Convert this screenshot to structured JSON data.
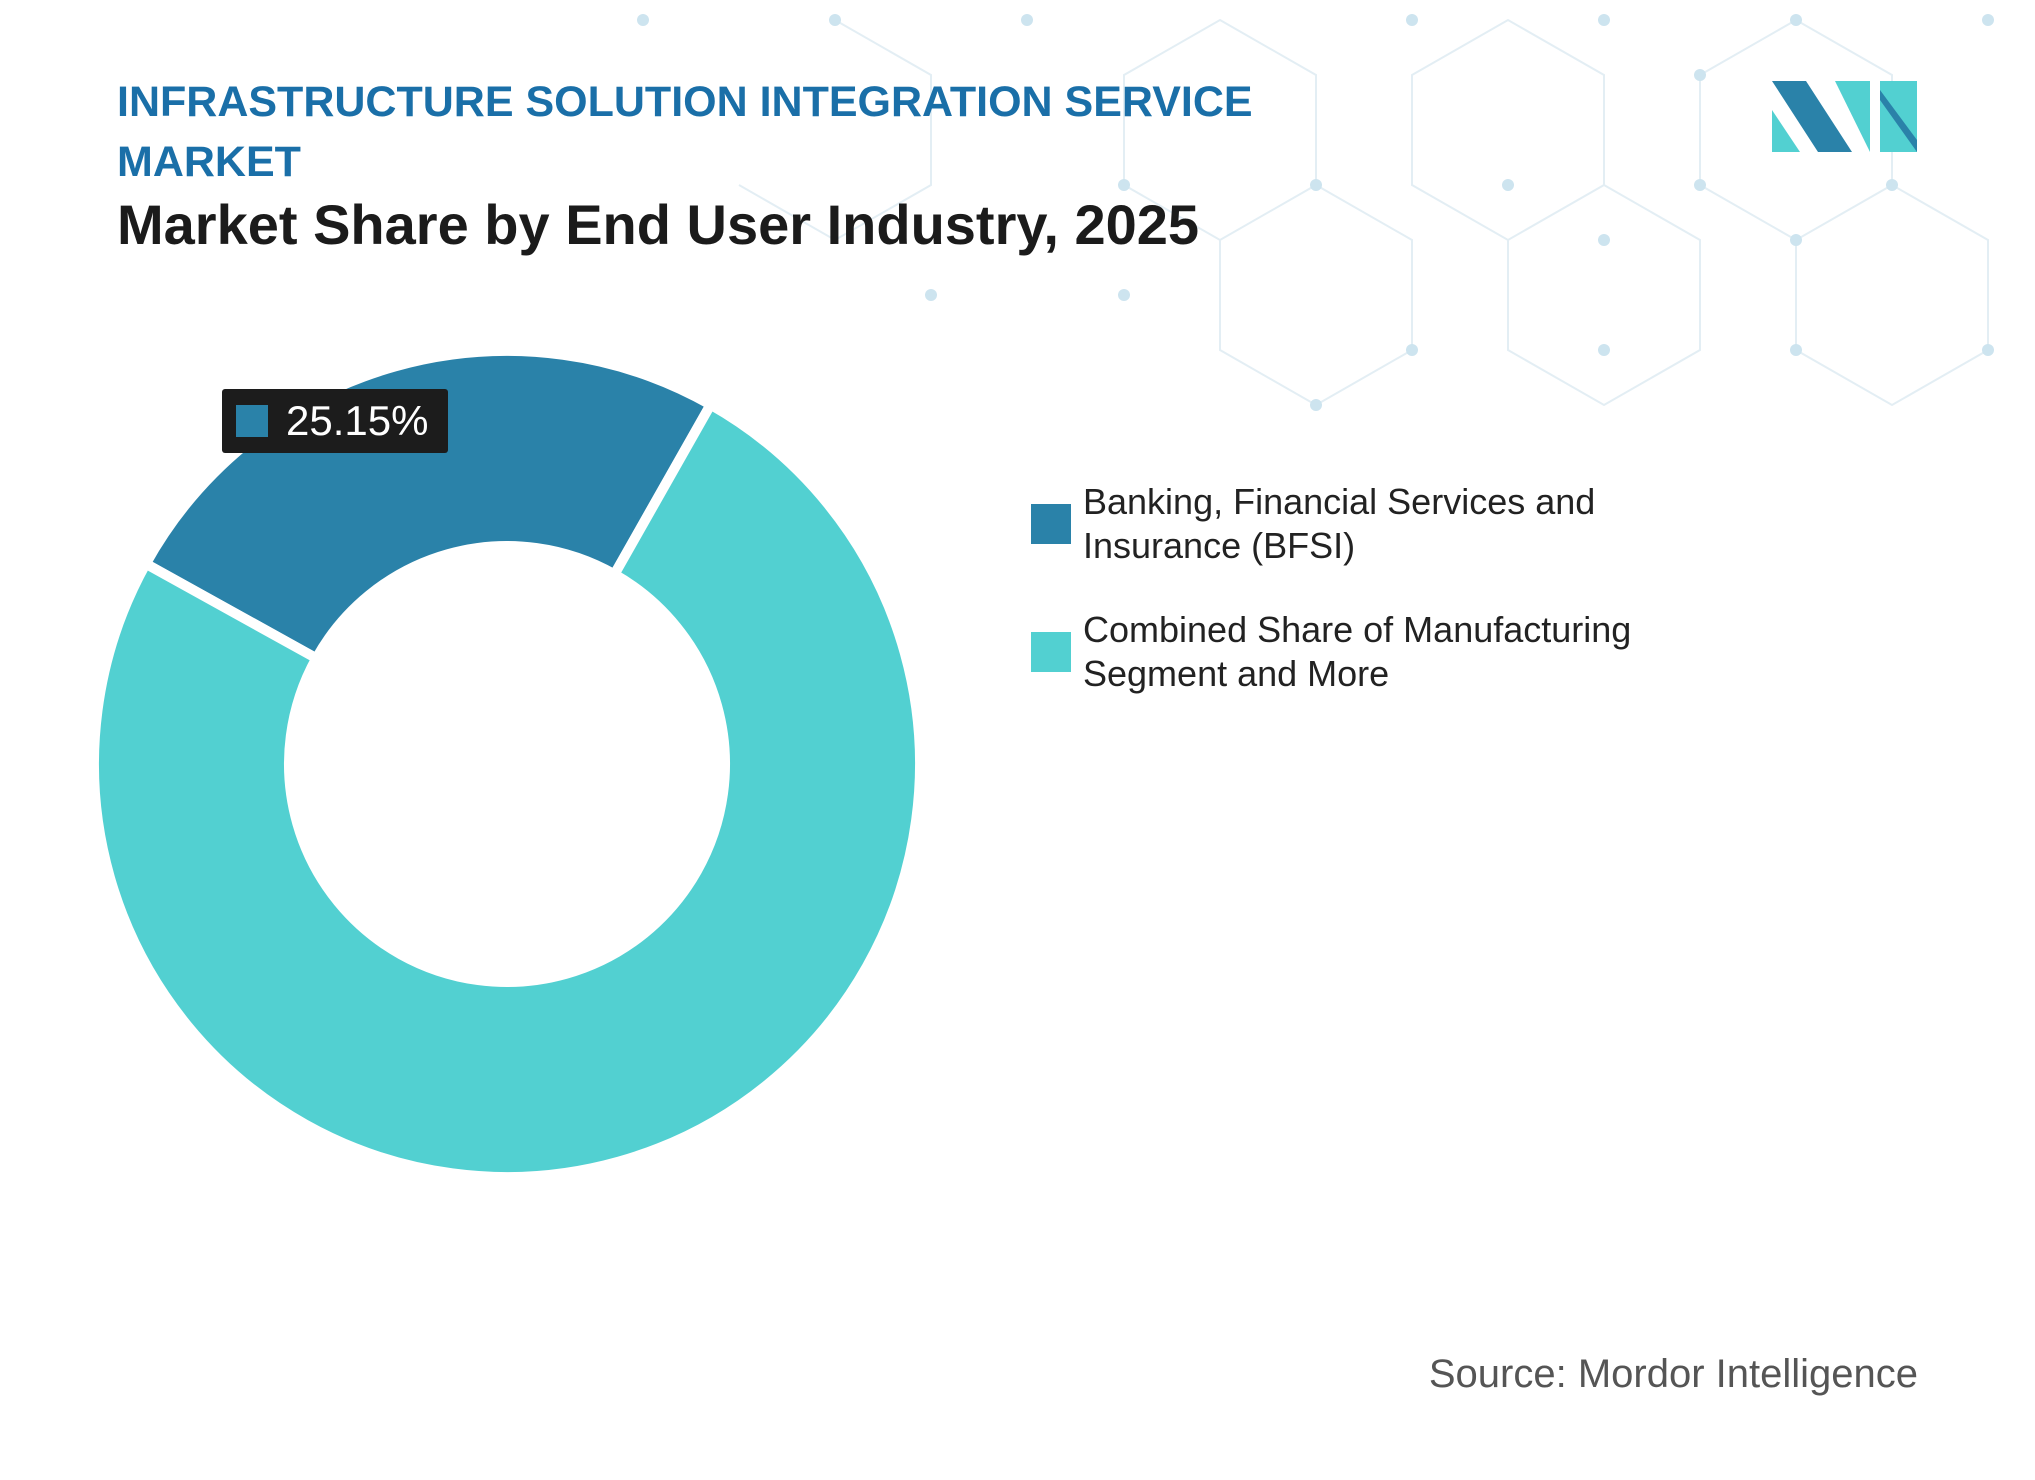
{
  "chart_data": {
    "type": "donut",
    "title": "INFRASTRUCTURE SOLUTION INTEGRATION SERVICE MARKET",
    "subtitle": "Market Share by End User Industry, 2025",
    "categories": [
      "Banking, Financial Services and Insurance (BFSI)",
      "Combined Share of Manufacturing Segment and More"
    ],
    "values": [
      25.15,
      74.85
    ],
    "value_labels": [
      "25.15%",
      null
    ],
    "colors": [
      "#2a82a9",
      "#52d0d1"
    ],
    "source": "Source: Mordor Intelligence"
  }
}
